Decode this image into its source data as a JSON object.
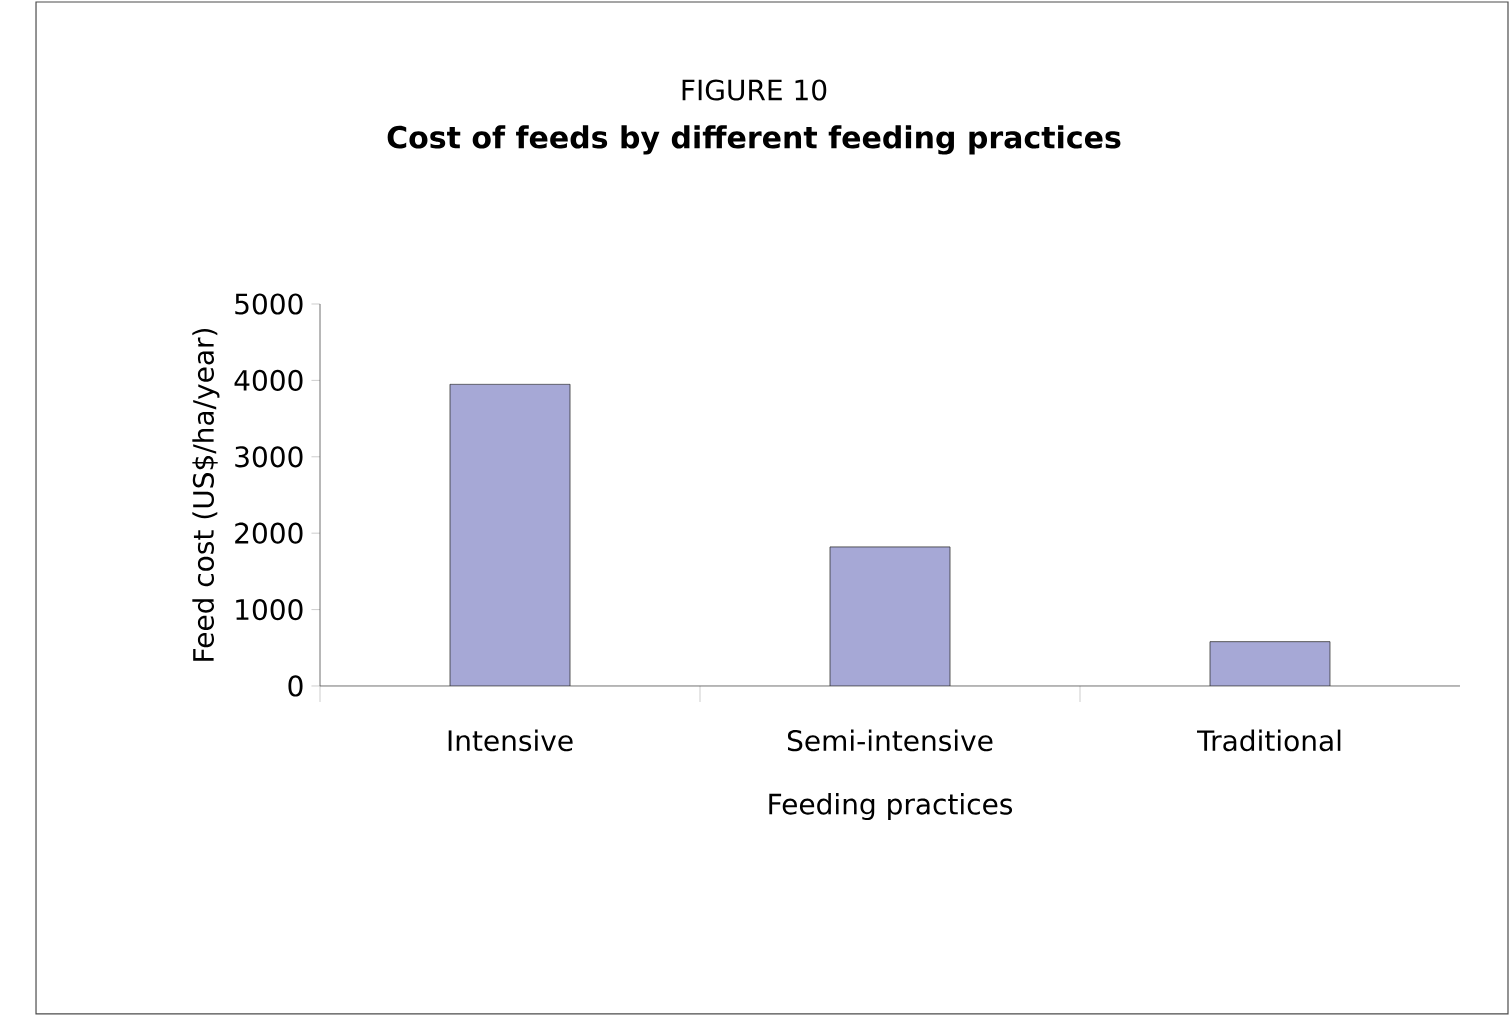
{
  "chart_data": {
    "type": "bar",
    "title": "FIGURE 10",
    "subtitle": "Cost of feeds by different feeding practices",
    "xlabel": "Feeding practices",
    "ylabel": "Feed cost (US$/ha/year)",
    "categories": [
      "Intensive",
      "Semi-intensive",
      "Traditional"
    ],
    "values": [
      3950,
      1820,
      580
    ],
    "color": "#a6a8d6",
    "ylim": [
      0,
      5000
    ],
    "yticks": [
      0,
      1000,
      2000,
      3000,
      4000,
      5000
    ]
  }
}
